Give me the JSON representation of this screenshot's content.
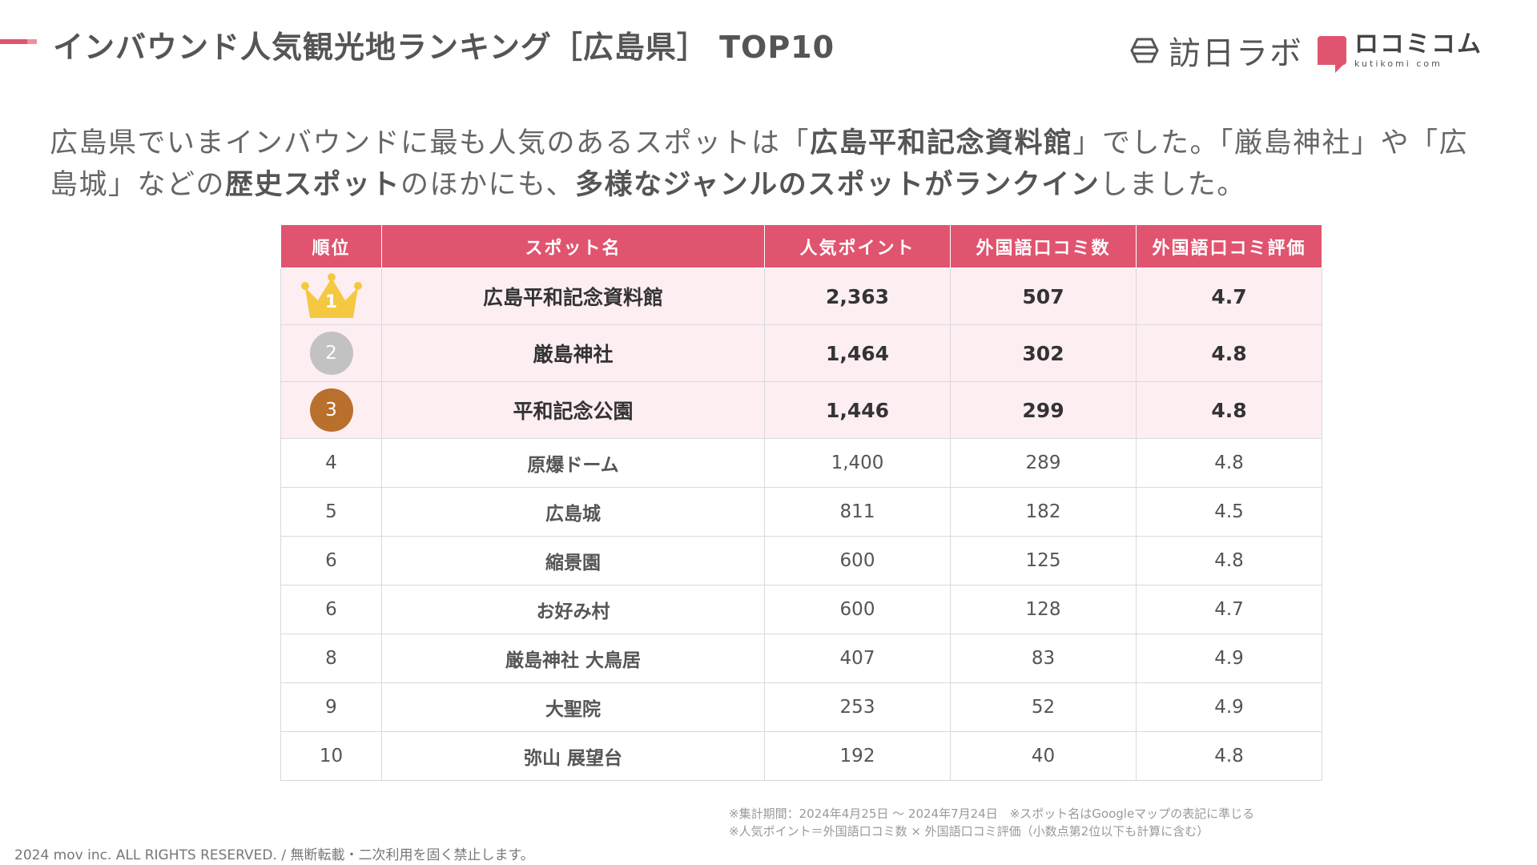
{
  "header": {
    "title": "インバウンド人気観光地ランキング［広島県］ TOP10",
    "brand_lab": "訪日ラボ",
    "brand_komi": "ロコミコム",
    "brand_komi_domain": "kutikomi com"
  },
  "lead": {
    "p1": "広島県でいまインバウンドに最も人気のあるスポットは「",
    "b1": "広島平和記念資料館",
    "p2": "」でした。「厳島神社」や「広島城」などの",
    "b2": "歴史スポット",
    "p3": "のほかにも、",
    "b3": "多様なジャンルのスポットがランクイン",
    "p4": "しました。"
  },
  "table": {
    "headers": [
      "順位",
      "スポット名",
      "人気ポイント",
      "外国語口コミ数",
      "外国語口コミ評価"
    ],
    "rows": [
      {
        "rank": "1",
        "spot": "広島平和記念資料館",
        "points": "2,363",
        "reviews": "507",
        "rating": "4.7"
      },
      {
        "rank": "2",
        "spot": "厳島神社",
        "points": "1,464",
        "reviews": "302",
        "rating": "4.8"
      },
      {
        "rank": "3",
        "spot": "平和記念公園",
        "points": "1,446",
        "reviews": "299",
        "rating": "4.8"
      },
      {
        "rank": "4",
        "spot": "原爆ドーム",
        "points": "1,400",
        "reviews": "289",
        "rating": "4.8"
      },
      {
        "rank": "5",
        "spot": "広島城",
        "points": "811",
        "reviews": "182",
        "rating": "4.5"
      },
      {
        "rank": "6",
        "spot": "縮景園",
        "points": "600",
        "reviews": "125",
        "rating": "4.8"
      },
      {
        "rank": "6",
        "spot": "お好み村",
        "points": "600",
        "reviews": "128",
        "rating": "4.7"
      },
      {
        "rank": "8",
        "spot": "厳島神社 大鳥居",
        "points": "407",
        "reviews": "83",
        "rating": "4.9"
      },
      {
        "rank": "9",
        "spot": "大聖院",
        "points": "253",
        "reviews": "52",
        "rating": "4.9"
      },
      {
        "rank": "10",
        "spot": "弥山 展望台",
        "points": "192",
        "reviews": "40",
        "rating": "4.8"
      }
    ]
  },
  "notes": {
    "line1": "※集計期間：2024年4月25日 〜 2024年7月24日　※スポット名はGoogleマップの表記に準じる",
    "line2": "※人気ポイント＝外国語口コミ数 × 外国語口コミ評価（小数点第2位以下も計算に含む）"
  },
  "footer": {
    "copyright": "2024 mov inc. ALL RIGHTS RESERVED. / 無断転載・二次利用を固く禁止します。"
  },
  "colors": {
    "accent": "#e0546f",
    "highlight_row": "#fdeef2",
    "gold": "#f5c842",
    "silver": "#c2c2c2",
    "bronze": "#b8702c"
  }
}
